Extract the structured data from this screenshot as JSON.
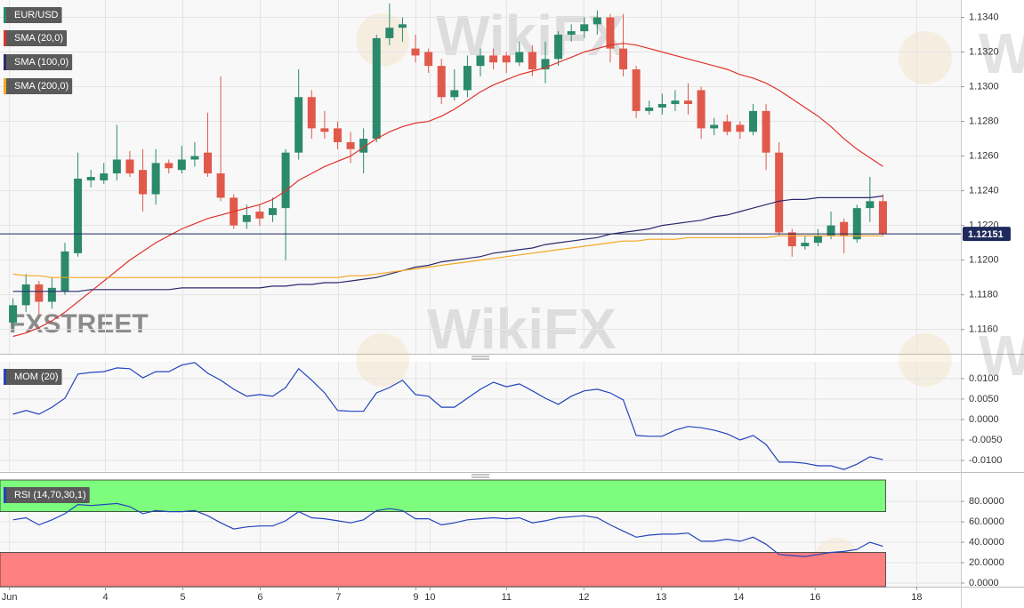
{
  "watermark": {
    "wikifx": "WikiFX",
    "fxstreet": "FXSTREET"
  },
  "chart_data": [
    {
      "type": "candlestick",
      "title": "EUR/USD",
      "up_color": "#2b8a6c",
      "down_color": "#e0594a",
      "x": [
        0,
        1,
        2,
        3,
        4,
        5,
        6,
        7,
        8,
        9,
        10,
        11,
        12,
        13,
        14,
        15,
        16,
        17,
        18,
        19,
        20,
        21,
        22,
        23,
        24,
        25,
        26,
        27,
        28,
        29,
        30,
        31,
        32,
        33,
        34,
        35,
        36,
        37,
        38,
        39,
        40,
        41,
        42,
        43,
        44,
        45,
        46,
        47,
        48,
        49,
        50,
        51,
        52,
        53,
        54,
        55,
        56,
        57,
        58,
        59,
        60,
        61,
        62,
        63,
        64,
        65,
        66,
        67
      ],
      "open": [
        1.1164,
        1.1174,
        1.1186,
        1.1176,
        1.1182,
        1.1204,
        1.1246,
        1.1246,
        1.125,
        1.1258,
        1.1252,
        1.1238,
        1.1256,
        1.1252,
        1.1258,
        1.1262,
        1.125,
        1.1236,
        1.1222,
        1.1228,
        1.1226,
        1.123,
        1.1262,
        1.1294,
        1.1276,
        1.1276,
        1.1268,
        1.1262,
        1.127,
        1.1328,
        1.1334,
        1.1322,
        1.132,
        1.1312,
        1.1294,
        1.1298,
        1.1312,
        1.1318,
        1.1318,
        1.1314,
        1.132,
        1.131,
        1.1316,
        1.133,
        1.1332,
        1.1336,
        1.134,
        1.1322,
        1.131,
        1.1286,
        1.1288,
        1.129,
        1.1292,
        1.1298,
        1.1276,
        1.128,
        1.1278,
        1.1274,
        1.1286,
        1.1262,
        1.1216,
        1.1208,
        1.121,
        1.1214,
        1.1222,
        1.1212,
        1.123,
        1.1234
      ],
      "high": [
        1.1178,
        1.1192,
        1.1188,
        1.119,
        1.121,
        1.1262,
        1.1252,
        1.1256,
        1.1278,
        1.1263,
        1.1264,
        1.1264,
        1.1258,
        1.1266,
        1.1268,
        1.1285,
        1.1306,
        1.1238,
        1.1232,
        1.1232,
        1.1236,
        1.1264,
        1.131,
        1.1298,
        1.1286,
        1.128,
        1.1274,
        1.1276,
        1.133,
        1.1348,
        1.134,
        1.133,
        1.1322,
        1.1316,
        1.131,
        1.1318,
        1.1322,
        1.1322,
        1.132,
        1.1326,
        1.1324,
        1.1326,
        1.1332,
        1.1336,
        1.134,
        1.1344,
        1.1342,
        1.1342,
        1.1312,
        1.1292,
        1.1296,
        1.1298,
        1.1302,
        1.13,
        1.1282,
        1.1284,
        1.128,
        1.129,
        1.129,
        1.1268,
        1.1218,
        1.1214,
        1.1218,
        1.1228,
        1.1224,
        1.1232,
        1.1248,
        1.1238
      ],
      "low": [
        1.116,
        1.117,
        1.1168,
        1.1172,
        1.118,
        1.1202,
        1.1242,
        1.1244,
        1.1246,
        1.1248,
        1.1228,
        1.1232,
        1.125,
        1.125,
        1.1254,
        1.1248,
        1.1234,
        1.1218,
        1.1218,
        1.122,
        1.1222,
        1.12,
        1.1258,
        1.127,
        1.127,
        1.1264,
        1.1256,
        1.125,
        1.1268,
        1.1324,
        1.1326,
        1.1314,
        1.1308,
        1.129,
        1.1292,
        1.1294,
        1.1306,
        1.131,
        1.1308,
        1.1312,
        1.1306,
        1.1302,
        1.1312,
        1.1326,
        1.1328,
        1.133,
        1.1314,
        1.1306,
        1.1282,
        1.1284,
        1.1284,
        1.1286,
        1.1284,
        1.127,
        1.1272,
        1.1272,
        1.127,
        1.1272,
        1.1252,
        1.1214,
        1.1202,
        1.1206,
        1.1208,
        1.1212,
        1.1204,
        1.121,
        1.1222,
        1.1214
      ],
      "close": [
        1.1174,
        1.1186,
        1.1176,
        1.1184,
        1.1205,
        1.1247,
        1.1248,
        1.125,
        1.1258,
        1.125,
        1.1238,
        1.1256,
        1.1253,
        1.1258,
        1.126,
        1.125,
        1.1236,
        1.122,
        1.1226,
        1.1224,
        1.123,
        1.1262,
        1.1294,
        1.1276,
        1.1274,
        1.1268,
        1.1264,
        1.127,
        1.1328,
        1.1334,
        1.1336,
        1.1318,
        1.1312,
        1.1294,
        1.1298,
        1.1312,
        1.1318,
        1.1314,
        1.1314,
        1.132,
        1.131,
        1.1316,
        1.133,
        1.1332,
        1.1336,
        1.134,
        1.1322,
        1.131,
        1.1286,
        1.1288,
        1.129,
        1.1292,
        1.129,
        1.1276,
        1.1278,
        1.1274,
        1.1274,
        1.1286,
        1.1262,
        1.1216,
        1.1208,
        1.121,
        1.1214,
        1.122,
        1.1214,
        1.123,
        1.1234,
        1.1215
      ],
      "overlays": [
        {
          "name": "SMA (20,0)",
          "color": "#e0332b",
          "values": [
            1.1156,
            1.1158,
            1.1161,
            1.1165,
            1.117,
            1.1176,
            1.1182,
            1.1188,
            1.1194,
            1.12,
            1.1205,
            1.121,
            1.1214,
            1.1218,
            1.1221,
            1.1224,
            1.1226,
            1.1228,
            1.123,
            1.1232,
            1.1235,
            1.124,
            1.1246,
            1.125,
            1.1254,
            1.1257,
            1.126,
            1.1265,
            1.127,
            1.1274,
            1.1277,
            1.1279,
            1.128,
            1.1283,
            1.1287,
            1.1292,
            1.1297,
            1.1301,
            1.1304,
            1.1307,
            1.1309,
            1.1311,
            1.1314,
            1.1317,
            1.132,
            1.1322,
            1.1324,
            1.1325,
            1.1324,
            1.1322,
            1.132,
            1.1318,
            1.1316,
            1.1314,
            1.1312,
            1.131,
            1.1307,
            1.1305,
            1.1302,
            1.1298,
            1.1293,
            1.1288,
            1.1283,
            1.1277,
            1.127,
            1.1264,
            1.1259,
            1.1254
          ]
        },
        {
          "name": "SMA (100,0)",
          "color": "#2a2a6e",
          "values": [
            1.1182,
            1.1182,
            1.1182,
            1.1182,
            1.1182,
            1.1182,
            1.1183,
            1.1183,
            1.1183,
            1.1183,
            1.1183,
            1.1183,
            1.1183,
            1.1184,
            1.1184,
            1.1184,
            1.1184,
            1.1184,
            1.1184,
            1.1184,
            1.1185,
            1.1185,
            1.1186,
            1.1186,
            1.1187,
            1.1187,
            1.1188,
            1.1189,
            1.119,
            1.1192,
            1.1194,
            1.1196,
            1.1197,
            1.1199,
            1.12,
            1.1201,
            1.1202,
            1.1204,
            1.1205,
            1.1206,
            1.1207,
            1.1209,
            1.121,
            1.1211,
            1.1212,
            1.1213,
            1.1215,
            1.1216,
            1.1217,
            1.1218,
            1.122,
            1.1221,
            1.1222,
            1.1223,
            1.1225,
            1.1226,
            1.1228,
            1.123,
            1.1232,
            1.1234,
            1.1235,
            1.1235,
            1.1236,
            1.1236,
            1.1236,
            1.1236,
            1.1236,
            1.1237
          ]
        },
        {
          "name": "SMA (200,0)",
          "color": "#f5a623",
          "values": [
            1.1192,
            1.1191,
            1.1191,
            1.119,
            1.119,
            1.119,
            1.119,
            1.119,
            1.119,
            1.119,
            1.119,
            1.119,
            1.119,
            1.119,
            1.119,
            1.119,
            1.119,
            1.119,
            1.119,
            1.119,
            1.119,
            1.119,
            1.119,
            1.119,
            1.119,
            1.119,
            1.1191,
            1.1191,
            1.1192,
            1.1193,
            1.1194,
            1.1195,
            1.1196,
            1.1197,
            1.1198,
            1.1199,
            1.12,
            1.1201,
            1.1202,
            1.1203,
            1.1204,
            1.1205,
            1.1206,
            1.1207,
            1.1208,
            1.1209,
            1.121,
            1.1211,
            1.1211,
            1.1212,
            1.1212,
            1.1212,
            1.1213,
            1.1213,
            1.1213,
            1.1213,
            1.1213,
            1.1213,
            1.1213,
            1.1214,
            1.1214,
            1.1214,
            1.1214,
            1.1214,
            1.1214,
            1.1214,
            1.1214,
            1.1214
          ]
        }
      ],
      "last_price": {
        "value": 1.12151,
        "label": "1.12151"
      },
      "last_price_color": "#1f2a5c",
      "ylim": [
        1.1146,
        1.135
      ],
      "yticks": [
        {
          "value": 1.116,
          "label": "1.1160"
        },
        {
          "value": 1.118,
          "label": "1.1180"
        },
        {
          "value": 1.12,
          "label": "1.1200"
        },
        {
          "value": 1.122,
          "label": "1.1220"
        },
        {
          "value": 1.124,
          "label": "1.1240"
        },
        {
          "value": 1.126,
          "label": "1.1260"
        },
        {
          "value": 1.128,
          "label": "1.1280"
        },
        {
          "value": 1.13,
          "label": "1.1300"
        },
        {
          "value": 1.132,
          "label": "1.1320"
        },
        {
          "value": 1.134,
          "label": "1.1340"
        }
      ],
      "grid": true
    },
    {
      "type": "line",
      "title": "MOM (20)",
      "series": [
        {
          "name": "MOM (20)",
          "color": "#2244bb",
          "values": [
            0.0013,
            0.0022,
            0.0013,
            0.003,
            0.0052,
            0.0111,
            0.0115,
            0.0117,
            0.0126,
            0.0124,
            0.0102,
            0.0117,
            0.0117,
            0.0133,
            0.0139,
            0.0113,
            0.0096,
            0.0074,
            0.0057,
            0.0061,
            0.0057,
            0.0078,
            0.0124,
            0.0096,
            0.0065,
            0.0022,
            0.002,
            0.002,
            0.0065,
            0.0078,
            0.0096,
            0.0061,
            0.0057,
            0.003,
            0.003,
            0.0052,
            0.0074,
            0.0091,
            0.008,
            0.0087,
            0.007,
            0.0052,
            0.0037,
            0.0057,
            0.007,
            0.0074,
            0.0065,
            0.0048,
            -0.0039,
            -0.0041,
            -0.0041,
            -0.0026,
            -0.0017,
            -0.002,
            -0.0026,
            -0.0035,
            -0.005,
            -0.0039,
            -0.0061,
            -0.0104,
            -0.0104,
            -0.0107,
            -0.0113,
            -0.0113,
            -0.0122,
            -0.0109,
            -0.0091,
            -0.0098
          ]
        }
      ],
      "ylim": [
        -0.0126,
        0.0141
      ],
      "yticks": [
        {
          "value": -0.01,
          "label": "-0.0100"
        },
        {
          "value": -0.005,
          "label": "-0.0050"
        },
        {
          "value": 0,
          "label": "0.0000"
        },
        {
          "value": 0.005,
          "label": "0.0050"
        },
        {
          "value": 0.01,
          "label": "0.0100"
        }
      ],
      "grid": true
    },
    {
      "type": "line",
      "title": "RSI (14,70,30,1)",
      "series": [
        {
          "name": "RSI (14,70,30,1)",
          "color": "#2244bb",
          "values": [
            62,
            64,
            57,
            62,
            68,
            77,
            76,
            77,
            78,
            75,
            68,
            71,
            70,
            70,
            71,
            66,
            59,
            53,
            55,
            56,
            56,
            61,
            70,
            64,
            63,
            61,
            59,
            62,
            71,
            73,
            71,
            63,
            63,
            57,
            59,
            62,
            63,
            64,
            63,
            64,
            59,
            61,
            64,
            65,
            66,
            64,
            57,
            51,
            45,
            47,
            48,
            48,
            49,
            41,
            41,
            43,
            41,
            45,
            38,
            28,
            27,
            26,
            28,
            30,
            31,
            33,
            40,
            36
          ]
        }
      ],
      "overbought": 70,
      "oversold": 30,
      "overbought_color": "#7dfc7d",
      "oversold_color": "#ff8080",
      "ylim": [
        -3.5,
        101
      ],
      "yticks": [
        {
          "value": 0,
          "label": "0.0000"
        },
        {
          "value": 20,
          "label": "20.0000"
        },
        {
          "value": 40,
          "label": "40.0000"
        },
        {
          "value": 60,
          "label": "60.0000"
        },
        {
          "value": 80,
          "label": "80.0000"
        }
      ],
      "xlim": [
        -1,
        73
      ],
      "xticks": [
        {
          "value": -0.27,
          "label": "Jun"
        },
        {
          "value": 7.12,
          "label": "4"
        },
        {
          "value": 13.08,
          "label": "5"
        },
        {
          "value": 19.04,
          "label": "6"
        },
        {
          "value": 25.07,
          "label": "7"
        },
        {
          "value": 31.03,
          "label": "9"
        },
        {
          "value": 32.12,
          "label": "10"
        },
        {
          "value": 38.01,
          "label": "11"
        },
        {
          "value": 43.97,
          "label": "12"
        },
        {
          "value": 49.93,
          "label": "13"
        },
        {
          "value": 55.89,
          "label": "14"
        },
        {
          "value": 61.78,
          "label": "16"
        },
        {
          "value": 69.6,
          "label": "18"
        }
      ],
      "grid": true
    }
  ]
}
